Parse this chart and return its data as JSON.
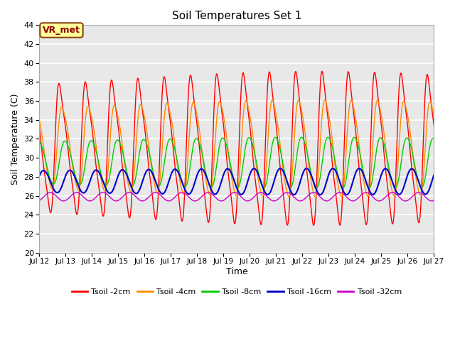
{
  "title": "Soil Temperatures Set 1",
  "xlabel": "Time",
  "ylabel": "Soil Temperature (C)",
  "xlim": [
    0,
    360
  ],
  "ylim": [
    20,
    44
  ],
  "yticks": [
    20,
    22,
    24,
    26,
    28,
    30,
    32,
    34,
    36,
    38,
    40,
    42,
    44
  ],
  "xtick_labels": [
    "Jul 12",
    "Jul 13",
    "Jul 14",
    "Jul 15",
    "Jul 16",
    "Jul 17",
    "Jul 18",
    "Jul 19",
    "Jul 20",
    "Jul 21",
    "Jul 22",
    "Jul 23",
    "Jul 24",
    "Jul 25",
    "Jul 26",
    "Jul 27"
  ],
  "xtick_positions": [
    0,
    24,
    48,
    72,
    96,
    120,
    144,
    168,
    192,
    216,
    240,
    264,
    288,
    312,
    336,
    360
  ],
  "annotation_text": "VR_met",
  "line_colors": [
    "#FF0000",
    "#FF8C00",
    "#00CC00",
    "#0000CC",
    "#CC00CC"
  ],
  "line_labels": [
    "Tsoil -2cm",
    "Tsoil -4cm",
    "Tsoil -8cm",
    "Tsoil -16cm",
    "Tsoil -32cm"
  ],
  "bg_color": "#E8E8E8",
  "fig_color": "#FFFFFF",
  "grid_color": "#FFFFFF"
}
